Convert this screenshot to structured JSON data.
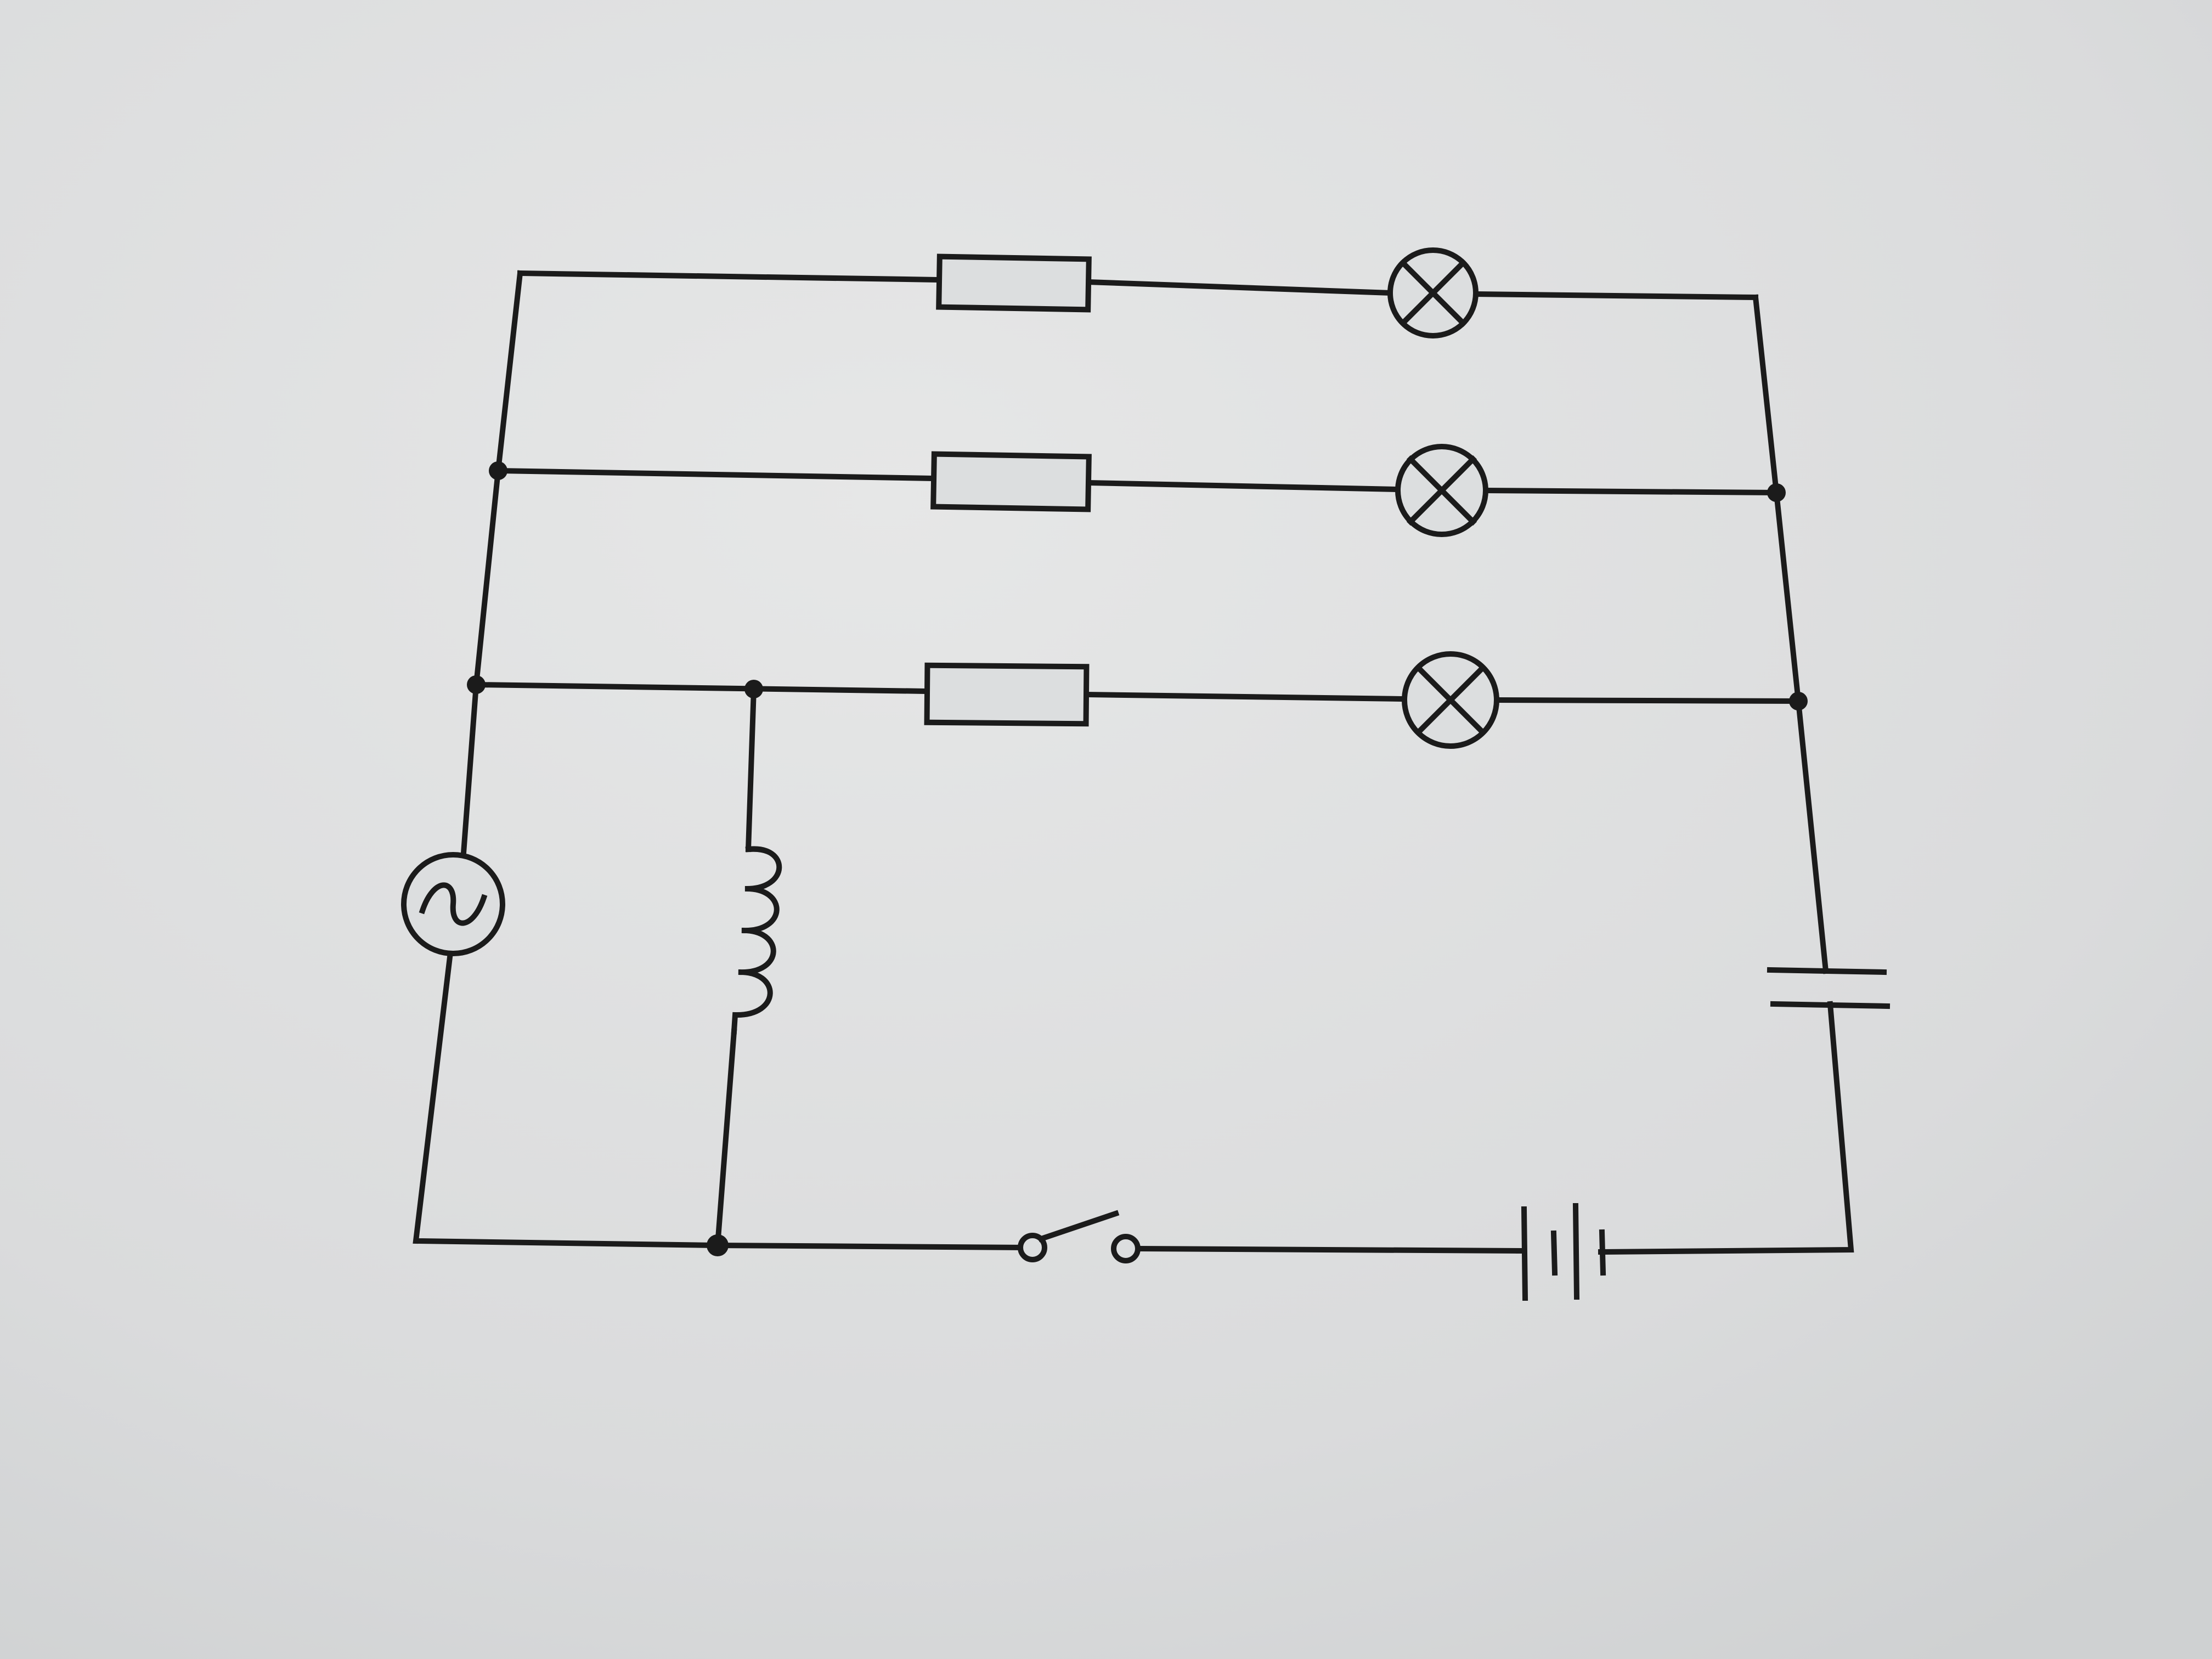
{
  "diagram": {
    "type": "circuit-schematic",
    "title": "",
    "components": {
      "ac_source": "ac-source-icon",
      "resistors": [
        "resistor-icon",
        "resistor-icon",
        "resistor-icon"
      ],
      "lamps": [
        "lamp-icon",
        "lamp-icon",
        "lamp-icon"
      ],
      "inductor": "inductor-icon",
      "capacitor": "capacitor-icon",
      "switch": "open-switch-icon",
      "battery": "battery-icon"
    },
    "colors": {
      "paper": "#dcdedf",
      "ink": "#1b1b1b"
    }
  }
}
